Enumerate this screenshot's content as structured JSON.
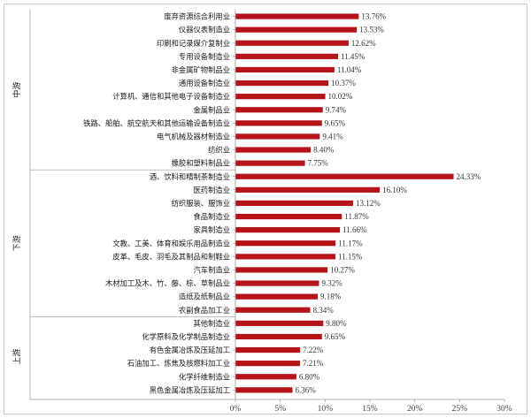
{
  "chart_data": {
    "type": "bar",
    "orientation": "horizontal",
    "bar_color": "#B5141B",
    "xlim": [
      0,
      30
    ],
    "x_ticks": [
      "0%",
      "5%",
      "10%",
      "15%",
      "20%",
      "25%",
      "30%"
    ],
    "groups": [
      {
        "name": "中游",
        "categories": [
          "废弃资源综合利用业",
          "仪器仪表制造业",
          "印刷和记录媒介复制业",
          "专用设备制造业",
          "非金属矿物制品业",
          "通用设备制造业",
          "计算机、通信和其他电子设备制造业",
          "金属制品业",
          "铁路、船舶、航空航天和其他运输设备制造业",
          "电气机械及器材制造业",
          "纺织业",
          "橡胶和塑料制品业"
        ],
        "values": [
          13.76,
          13.53,
          12.62,
          11.45,
          11.04,
          10.37,
          10.02,
          9.74,
          9.65,
          9.41,
          8.4,
          7.75
        ],
        "value_labels": [
          "13.76%",
          "13.53%",
          "12.62%",
          "11.45%",
          "11.04%",
          "10.37%",
          "10.02%",
          "9.74%",
          "9.65%",
          "9.41%",
          "8.40%",
          "7.75%"
        ]
      },
      {
        "name": "下游",
        "categories": [
          "酒、饮料和精制茶制造业",
          "医药制造业",
          "纺织服装、服饰业",
          "食品制造业",
          "家具制造业",
          "文教、工美、体育和娱乐用品制造业",
          "皮革、毛皮、羽毛及其制品和制鞋业",
          "汽车制造业",
          "木材加工及木、竹、藤、棕、草制品业",
          "造纸及纸制品业",
          "农副食品加工业"
        ],
        "values": [
          24.33,
          16.1,
          13.12,
          11.87,
          11.66,
          11.17,
          11.15,
          10.27,
          9.32,
          9.18,
          8.34
        ],
        "value_labels": [
          "24.33%",
          "16.10%",
          "13.12%",
          "11.87%",
          "11.66%",
          "11.17%",
          "11.15%",
          "10.27%",
          "9.32%",
          "9.18%",
          "8.34%"
        ]
      },
      {
        "name": "上游",
        "categories": [
          "其他制造业",
          "化学原料及化学制品制造业",
          "有色金属冶炼及压延加工",
          "石油加工、炼焦及核燃料加工业",
          "化学纤维制造业",
          "黑色金属冶炼及压延加工"
        ],
        "values": [
          9.8,
          9.65,
          7.22,
          7.21,
          6.8,
          6.36
        ],
        "value_labels": [
          "9.80%",
          "9.65%",
          "7.22%",
          "7.21%",
          "6.80%",
          "6.36%"
        ]
      }
    ],
    "grid": false,
    "legend": "none"
  }
}
